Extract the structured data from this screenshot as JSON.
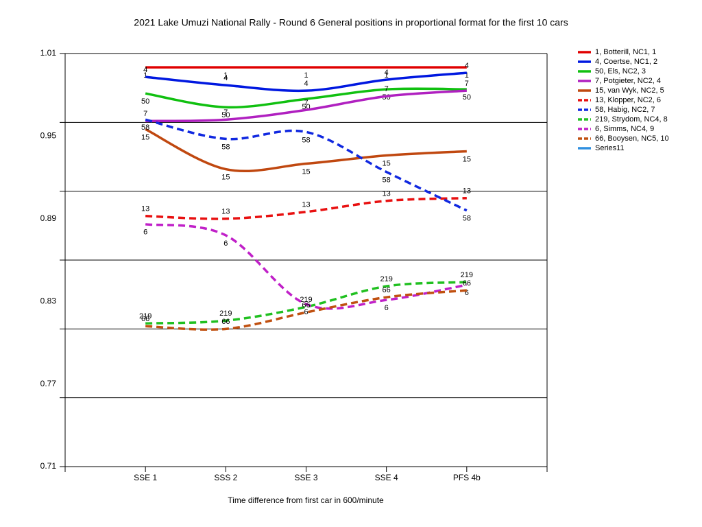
{
  "chart_data": {
    "type": "line",
    "title": "2021 Lake Umuzi National Rally - Round 6  General positions in proportional format for the first 10 cars",
    "x_label": "Time difference from first car in 600/minute",
    "categories": [
      "SSE 1",
      "SSS 2",
      "SSE 3",
      "SSE 4",
      "PFS 4b"
    ],
    "ylim": [
      0.71,
      1.01
    ],
    "yticks": [
      0.71,
      0.77,
      0.83,
      0.89,
      0.95,
      1.01
    ],
    "ygrid": [
      0.71,
      0.76,
      0.81,
      0.86,
      0.91,
      0.96,
      1.01
    ],
    "grid": true,
    "smooth": true,
    "legend": "right",
    "series": [
      {
        "name": "1, Botterill, NC1, 1",
        "label": "1",
        "color": "#e00000",
        "dashed": false,
        "values": [
          1.0,
          1.0,
          1.0,
          1.0,
          1.0
        ]
      },
      {
        "name": "4, Coertse, NC1, 2",
        "label": "4",
        "color": "#0018e0",
        "dashed": false,
        "values": [
          0.993,
          0.987,
          0.983,
          0.991,
          0.996
        ]
      },
      {
        "name": "50, Els, NC2, 3",
        "label": "50",
        "color": "#10c010",
        "dashed": false,
        "values": [
          0.981,
          0.971,
          0.977,
          0.984,
          0.984
        ]
      },
      {
        "name": "7, Potgieter, NC2, 4",
        "label": "7",
        "color": "#b020c0",
        "dashed": false,
        "values": [
          0.961,
          0.962,
          0.969,
          0.979,
          0.983
        ]
      },
      {
        "name": "15, van Wyk, NC2, 5",
        "label": "15",
        "color": "#c04810",
        "dashed": false,
        "values": [
          0.955,
          0.926,
          0.93,
          0.936,
          0.939
        ]
      },
      {
        "name": "13, Klopper, NC2, 6",
        "label": "13",
        "color": "#e81010",
        "dashed": true,
        "values": [
          0.892,
          0.89,
          0.895,
          0.903,
          0.905
        ]
      },
      {
        "name": "58, Habig, NC2, 7",
        "label": "58",
        "color": "#1028e0",
        "dashed": true,
        "values": [
          0.962,
          0.948,
          0.953,
          0.924,
          0.896
        ]
      },
      {
        "name": "219, Strydom, NC4, 8",
        "label": "219",
        "color": "#20c020",
        "dashed": true,
        "values": [
          0.814,
          0.816,
          0.826,
          0.841,
          0.844
        ]
      },
      {
        "name": "6, Simms, NC4, 9",
        "label": "6",
        "color": "#c020c8",
        "dashed": true,
        "values": [
          0.886,
          0.878,
          0.828,
          0.831,
          0.842
        ]
      },
      {
        "name": "66, Booysen, NC5, 10",
        "label": "66",
        "color": "#c05010",
        "dashed": true,
        "values": [
          0.812,
          0.81,
          0.822,
          0.833,
          0.838
        ]
      },
      {
        "name": "Series11",
        "color": "#3090e0",
        "dashed": false,
        "values": [
          null,
          null,
          null,
          null,
          null
        ]
      }
    ]
  }
}
